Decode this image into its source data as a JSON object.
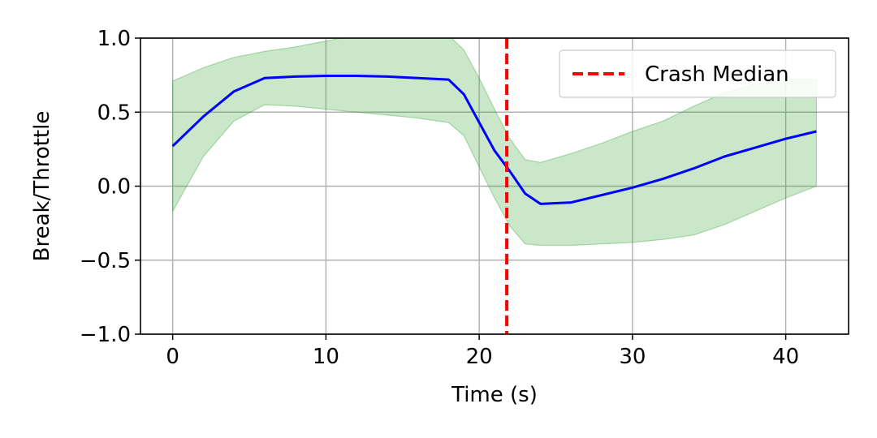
{
  "chart_data": {
    "type": "line",
    "xlabel": "Time (s)",
    "ylabel": "Break/Throttle",
    "xlim": [
      -2.1,
      44.1
    ],
    "ylim": [
      -1.0,
      1.0
    ],
    "xticks": [
      0,
      10,
      20,
      30,
      40
    ],
    "xtick_labels": [
      "0",
      "10",
      "20",
      "30",
      "40"
    ],
    "yticks": [
      -1.0,
      -0.5,
      0.0,
      0.5,
      1.0
    ],
    "ytick_labels": [
      "−1.0",
      "−0.5",
      "0.0",
      "0.5",
      "1.0"
    ],
    "grid": true,
    "legend_position": "top-right",
    "series": [
      {
        "name": "",
        "kind": "line",
        "color": "#0000ff",
        "x": [
          0,
          2,
          4,
          6,
          8,
          10,
          12,
          14,
          16,
          18,
          19,
          20,
          21,
          22,
          23,
          24,
          26,
          28,
          30,
          32,
          34,
          36,
          38,
          40,
          42
        ],
        "y": [
          0.27,
          0.47,
          0.64,
          0.73,
          0.74,
          0.745,
          0.745,
          0.74,
          0.73,
          0.72,
          0.62,
          0.43,
          0.24,
          0.1,
          -0.05,
          -0.12,
          -0.11,
          -0.06,
          -0.01,
          0.05,
          0.12,
          0.2,
          0.26,
          0.32,
          0.37
        ]
      },
      {
        "name": "",
        "kind": "band",
        "color": "#2ca02c",
        "x": [
          0,
          2,
          4,
          6,
          8,
          10,
          12,
          14,
          16,
          18,
          19,
          20,
          21,
          22,
          23,
          24,
          26,
          28,
          30,
          32,
          34,
          36,
          38,
          40,
          42
        ],
        "upper": [
          0.71,
          0.8,
          0.87,
          0.91,
          0.94,
          0.98,
          1.02,
          1.02,
          1.02,
          1.02,
          0.92,
          0.73,
          0.52,
          0.32,
          0.18,
          0.16,
          0.22,
          0.29,
          0.37,
          0.44,
          0.54,
          0.63,
          0.69,
          0.72,
          0.72
        ],
        "lower": [
          -0.17,
          0.2,
          0.44,
          0.55,
          0.54,
          0.52,
          0.5,
          0.48,
          0.46,
          0.43,
          0.34,
          0.13,
          -0.08,
          -0.27,
          -0.39,
          -0.4,
          -0.4,
          -0.39,
          -0.38,
          -0.36,
          -0.33,
          -0.26,
          -0.17,
          -0.08,
          0.0
        ]
      }
    ],
    "vlines": [
      {
        "name": "Crash Median",
        "x": 21.8,
        "color": "#ff0000",
        "style": "dashed"
      }
    ],
    "legend": [
      {
        "label": "Crash Median",
        "color": "#ff0000",
        "style": "dashed"
      }
    ]
  }
}
